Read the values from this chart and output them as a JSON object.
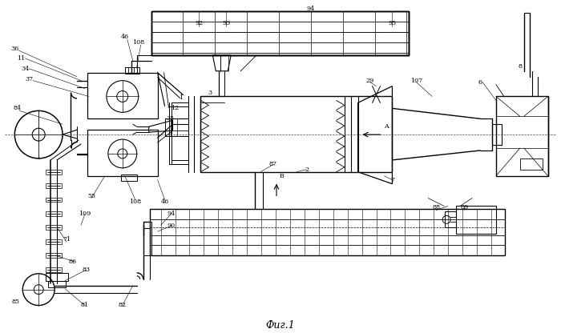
{
  "title": "Фиг.1",
  "bg_color": "#ffffff",
  "line_color": "#000000",
  "figsize": [
    7.0,
    4.16
  ],
  "dpi": 100
}
